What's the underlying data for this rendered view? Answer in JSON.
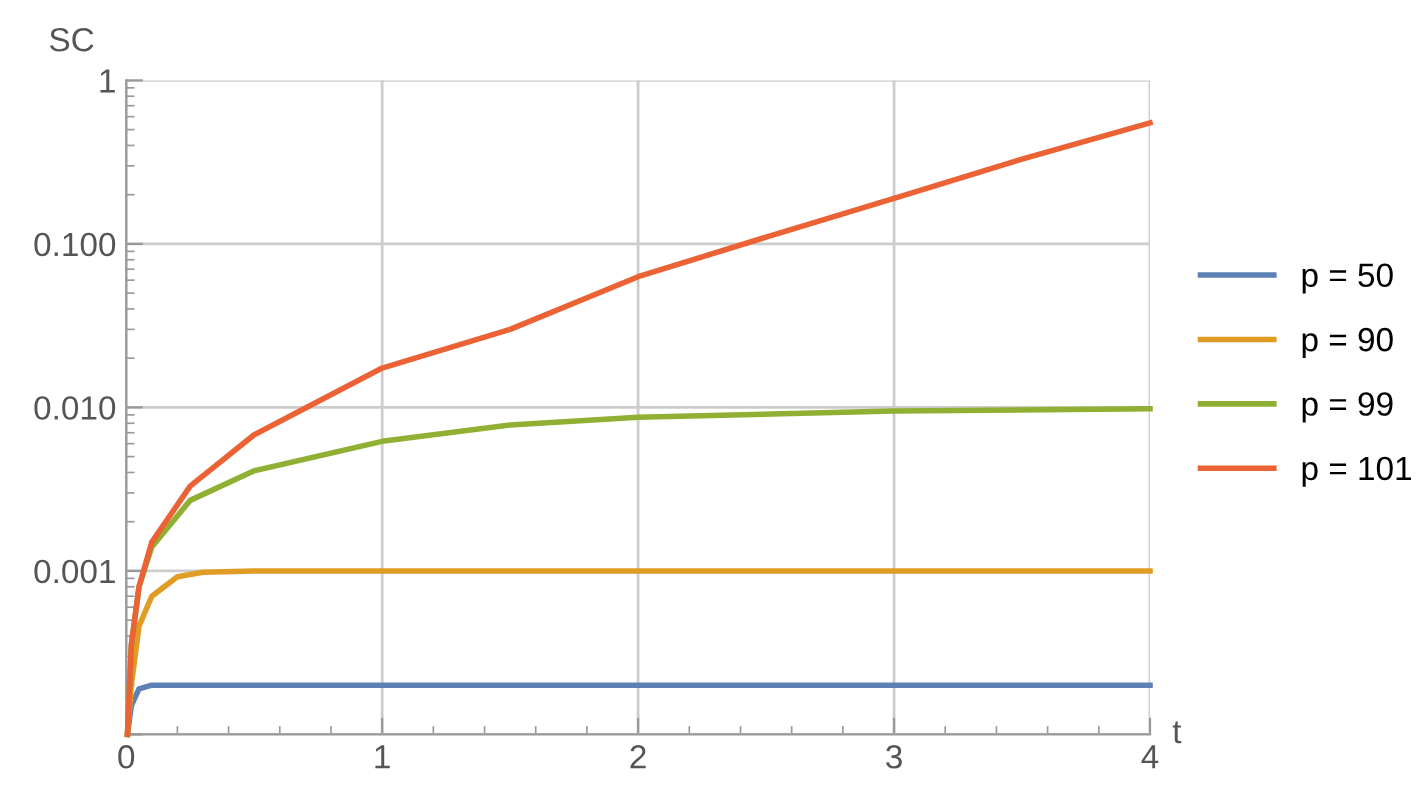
{
  "chart_data": {
    "type": "line",
    "xlabel": "t",
    "ylabel": "SC",
    "log": "y",
    "xlim": [
      0,
      4
    ],
    "ylim": [
      0.0001,
      1
    ],
    "xticks": [
      0,
      1,
      2,
      3,
      4
    ],
    "yticks": [
      {
        "value": 0.0001,
        "label": null
      },
      {
        "value": 0.001,
        "label": "0.001"
      },
      {
        "value": 0.01,
        "label": "0.010"
      },
      {
        "value": 0.1,
        "label": "0.100"
      },
      {
        "value": 1,
        "label": "1"
      }
    ],
    "grid": true,
    "legend": "right",
    "marker": "none",
    "line_style": "solid",
    "series": [
      {
        "name": "p = 50",
        "color": "#5e81b5",
        "x": [
          0.005,
          0.02,
          0.05,
          0.1,
          1,
          2,
          3,
          4
        ],
        "values": [
          0.0001,
          0.00015,
          0.00019,
          0.0002,
          0.0002,
          0.0002,
          0.0002,
          0.0002
        ]
      },
      {
        "name": "p = 90",
        "color": "#e19c24",
        "x": [
          0.005,
          0.02,
          0.05,
          0.1,
          0.2,
          0.3,
          0.5,
          1,
          2,
          3,
          4
        ],
        "values": [
          0.0001,
          0.0002,
          0.00046,
          0.0007,
          0.00092,
          0.00098,
          0.001,
          0.001,
          0.001,
          0.001,
          0.001
        ]
      },
      {
        "name": "p = 99",
        "color": "#8fb032",
        "x": [
          0.005,
          0.02,
          0.05,
          0.1,
          0.25,
          0.5,
          1,
          1.5,
          2,
          3,
          4
        ],
        "values": [
          0.0001,
          0.00035,
          0.0008,
          0.0014,
          0.0027,
          0.0041,
          0.0062,
          0.0078,
          0.0087,
          0.0095,
          0.0098
        ]
      },
      {
        "name": "p = 101",
        "color": "#eb6235",
        "x": [
          0.005,
          0.02,
          0.05,
          0.1,
          0.25,
          0.5,
          1,
          1.5,
          2,
          2.5,
          3,
          3.5,
          4
        ],
        "values": [
          0.0001,
          0.00035,
          0.0008,
          0.0015,
          0.0033,
          0.0068,
          0.0174,
          0.03,
          0.063,
          0.11,
          0.19,
          0.33,
          0.55
        ]
      }
    ]
  }
}
